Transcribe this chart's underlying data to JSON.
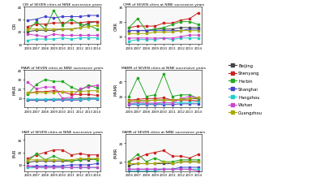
{
  "years": [
    2006,
    2007,
    2008,
    2009,
    2010,
    2011,
    2012,
    2013,
    2014
  ],
  "cities": [
    "Beijing",
    "Shenyang",
    "Harbin",
    "Shanghai",
    "Hangzhou",
    "Wuhan",
    "Guangzhou"
  ],
  "colors": [
    "#444444",
    "#cc2222",
    "#22aa22",
    "#4444cc",
    "#22cccc",
    "#cc44cc",
    "#aaaa00"
  ],
  "CIR": {
    "title": "CIR of SEVEN cities at NINE successive years",
    "ylabel": "CIR",
    "ylim": [
      10,
      40
    ],
    "yticks": [
      10,
      20,
      30,
      40
    ],
    "data": {
      "Beijing": [
        20,
        21,
        21,
        21,
        22,
        22,
        23,
        27,
        28
      ],
      "Shenyang": [
        24,
        26,
        26,
        27,
        27,
        27,
        27,
        28,
        28
      ],
      "Harbin": [
        21,
        28,
        22,
        37,
        25,
        30,
        26,
        25,
        22
      ],
      "Shanghai": [
        29,
        30,
        32,
        31,
        32,
        32,
        32,
        33,
        33
      ],
      "Hangzhou": [
        13,
        14,
        14,
        14,
        15,
        14,
        15,
        15,
        15
      ],
      "Wuhan": [
        18,
        17,
        16,
        18,
        17,
        17,
        17,
        17,
        17
      ],
      "Guangzhou": [
        22,
        22,
        22,
        22,
        22,
        22,
        23,
        24,
        25
      ]
    }
  },
  "CMR": {
    "title": "CMR of SEVEN cities at NINE successive years",
    "ylabel": "CMR",
    "ylim": [
      5,
      30
    ],
    "yticks": [
      10,
      20,
      30
    ],
    "data": {
      "Beijing": [
        14,
        14,
        14,
        15,
        15,
        15,
        16,
        16,
        16
      ],
      "Shenyang": [
        16,
        17,
        17,
        17,
        19,
        19,
        21,
        22,
        26
      ],
      "Harbin": [
        16,
        22,
        14,
        15,
        16,
        18,
        20,
        20,
        18
      ],
      "Shanghai": [
        14,
        14,
        14,
        14,
        14,
        14,
        14,
        15,
        15
      ],
      "Hangzhou": [
        7,
        8,
        8,
        8,
        9,
        8,
        9,
        9,
        9
      ],
      "Wuhan": [
        9,
        9,
        9,
        9,
        9,
        9,
        10,
        11,
        11
      ],
      "Guangzhou": [
        12,
        12,
        12,
        13,
        13,
        13,
        14,
        14,
        14
      ]
    }
  },
  "MAIR": {
    "title": "MAIR of SEVEN cities at NINE successive years",
    "ylabel": "MAIR",
    "ylim": [
      0,
      40
    ],
    "yticks": [
      10,
      20,
      30,
      40
    ],
    "data": {
      "Beijing": [
        8,
        8,
        8,
        9,
        9,
        9,
        10,
        10,
        10
      ],
      "Shenyang": [
        15,
        17,
        17,
        18,
        17,
        14,
        14,
        14,
        13
      ],
      "Harbin": [
        14,
        25,
        30,
        28,
        28,
        22,
        18,
        24,
        21
      ],
      "Shanghai": [
        8,
        8,
        8,
        8,
        8,
        8,
        8,
        9,
        9
      ],
      "Hangzhou": [
        9,
        9,
        9,
        9,
        9,
        9,
        9,
        9,
        10
      ],
      "Wuhan": [
        27,
        20,
        22,
        22,
        10,
        11,
        20,
        22,
        24
      ],
      "Guangzhou": [
        16,
        16,
        16,
        16,
        17,
        17,
        17,
        18,
        18
      ]
    }
  },
  "MAMR": {
    "title": "MAMR of SEVEN cities at NINE successive years",
    "ylabel": "MAMR",
    "ylim": [
      5,
      55
    ],
    "yticks": [
      20,
      40
    ],
    "data": {
      "Beijing": [
        13,
        14,
        14,
        15,
        15,
        15,
        16,
        17,
        17
      ],
      "Shenyang": [
        15,
        16,
        17,
        17,
        18,
        15,
        15,
        15,
        14
      ],
      "Harbin": [
        20,
        45,
        20,
        22,
        50,
        20,
        22,
        22,
        17
      ],
      "Shanghai": [
        9,
        9,
        9,
        9,
        9,
        9,
        10,
        10,
        10
      ],
      "Hangzhou": [
        10,
        10,
        10,
        10,
        11,
        11,
        12,
        12,
        13
      ],
      "Wuhan": [
        10,
        12,
        11,
        11,
        12,
        11,
        17,
        20,
        18
      ],
      "Guangzhou": [
        14,
        14,
        14,
        15,
        15,
        15,
        16,
        17,
        18
      ]
    }
  },
  "FAIR": {
    "title": "FAIR of SEVEN cities at NINE successive years",
    "ylabel": "FAIR",
    "ylim": [
      5,
      35
    ],
    "yticks": [
      10,
      20,
      30
    ],
    "data": {
      "Beijing": [
        12,
        13,
        13,
        13,
        13,
        13,
        14,
        14,
        15
      ],
      "Shenyang": [
        15,
        18,
        20,
        22,
        22,
        18,
        19,
        18,
        18
      ],
      "Harbin": [
        13,
        19,
        14,
        17,
        14,
        13,
        14,
        15,
        14
      ],
      "Shanghai": [
        9,
        9,
        9,
        9,
        9,
        10,
        10,
        10,
        11
      ],
      "Hangzhou": [
        8,
        8,
        8,
        8,
        8,
        8,
        8,
        8,
        8
      ],
      "Wuhan": [
        9,
        8,
        8,
        8,
        8,
        8,
        8,
        8,
        8
      ],
      "Guangzhou": [
        14,
        14,
        14,
        14,
        14,
        14,
        15,
        15,
        15
      ]
    }
  },
  "FAMR": {
    "title": "FAMR of SEVEN cities at NINE successive years",
    "ylabel": "FAMR",
    "ylim": [
      5,
      25
    ],
    "yticks": [
      10,
      20
    ],
    "data": {
      "Beijing": [
        8,
        9,
        9,
        9,
        9,
        9,
        10,
        10,
        10
      ],
      "Shenyang": [
        10,
        12,
        14,
        15,
        16,
        13,
        13,
        12,
        14
      ],
      "Harbin": [
        10,
        14,
        10,
        12,
        10,
        10,
        11,
        11,
        11
      ],
      "Shanghai": [
        6,
        6,
        6,
        6,
        6,
        6,
        7,
        7,
        7
      ],
      "Hangzhou": [
        5,
        5,
        5,
        5,
        6,
        6,
        6,
        6,
        6
      ],
      "Wuhan": [
        6,
        6,
        6,
        6,
        6,
        6,
        6,
        6,
        5
      ],
      "Guangzhou": [
        9,
        9,
        9,
        9,
        10,
        9,
        10,
        10,
        10
      ]
    }
  }
}
